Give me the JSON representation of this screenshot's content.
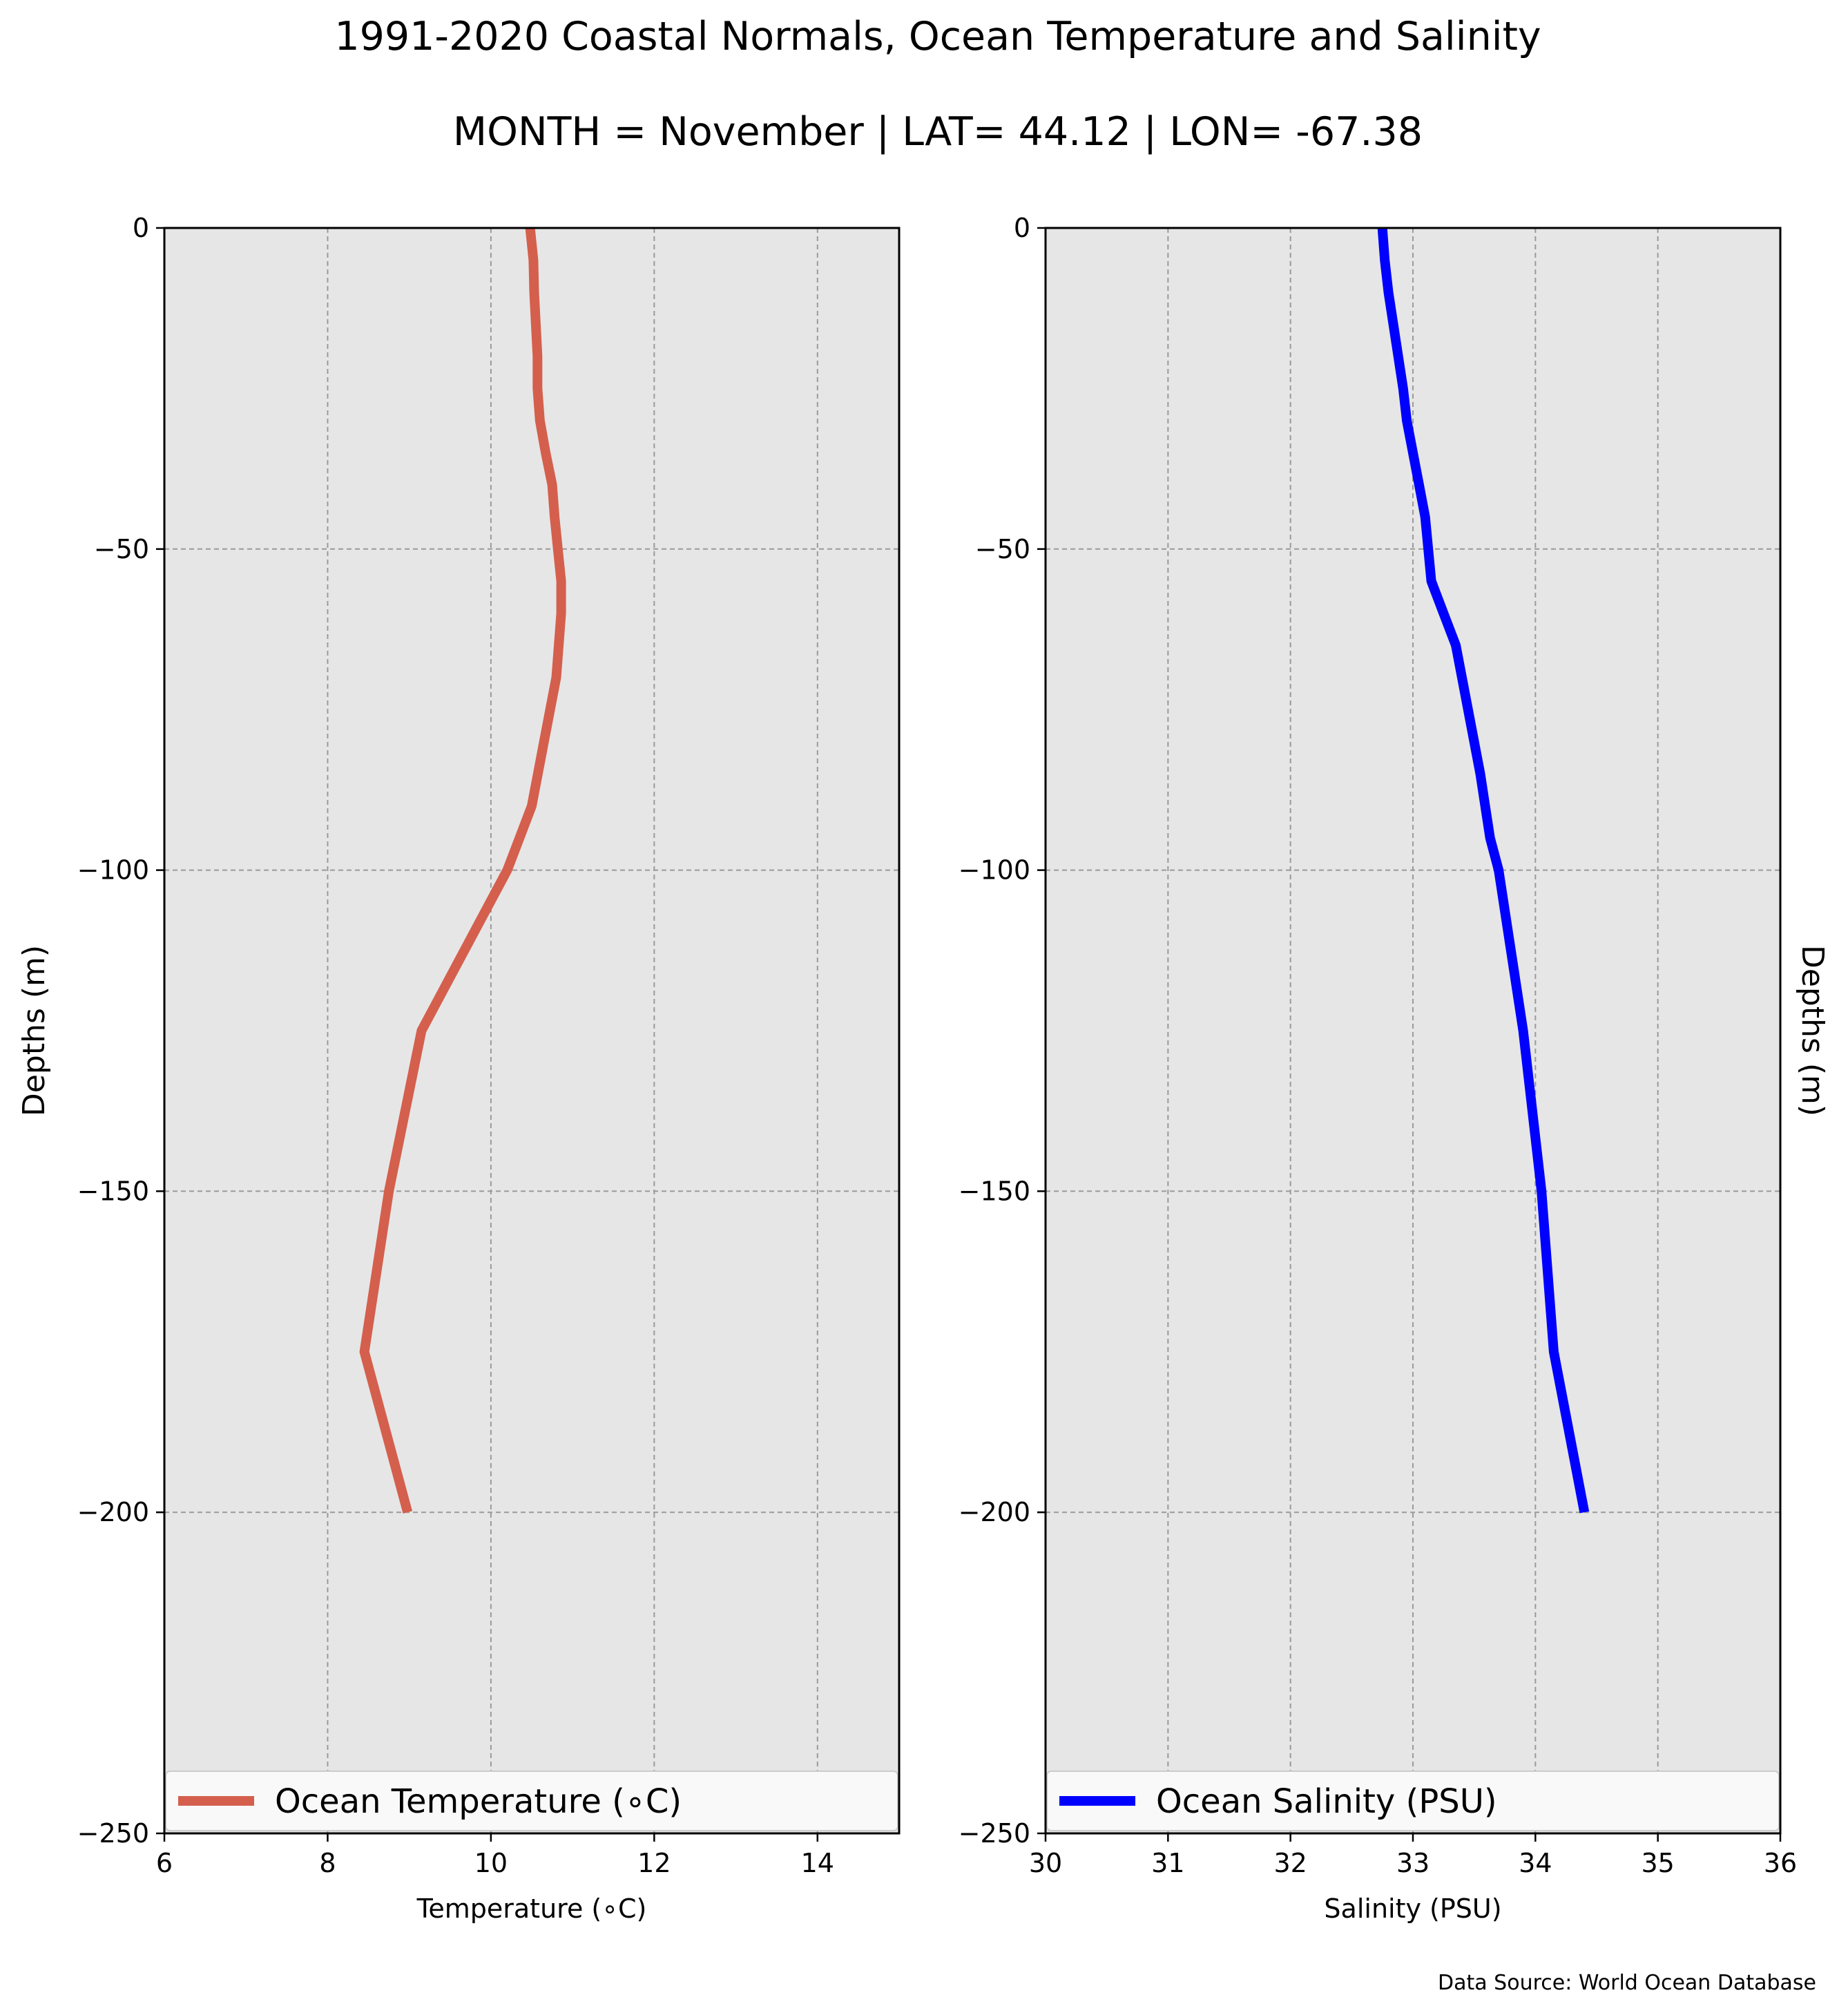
{
  "figure": {
    "title": "1991-2020 Coastal Normals, Ocean Temperature and Salinity",
    "subtitle": "MONTH = November | LAT= 44.12 | LON= -67.38",
    "source": "Data Source: World Ocean Database"
  },
  "chart_data": [
    {
      "type": "line",
      "xlabel": "Temperature (∘C)",
      "ylabel": "Depths (m)",
      "xlim": [
        6,
        15
      ],
      "ylim": [
        -250,
        0
      ],
      "xticks": [
        6,
        8,
        10,
        12,
        14
      ],
      "xtick_labels": [
        "6",
        "8",
        "10",
        "12",
        "14"
      ],
      "yticks": [
        0,
        -50,
        -100,
        -150,
        -200,
        -250
      ],
      "ytick_labels": [
        "0",
        "−50",
        "−100",
        "−150",
        "−200",
        "−250"
      ],
      "grid": true,
      "background": "#e6e6e6",
      "legend_placement": "lower",
      "series": [
        {
          "name": "Ocean Temperature (∘C)",
          "color": "#d45f4d",
          "x": [
            10.48,
            10.52,
            10.53,
            10.55,
            10.57,
            10.57,
            10.6,
            10.67,
            10.75,
            10.78,
            10.82,
            10.86,
            10.86,
            10.8,
            10.65,
            10.5,
            10.35,
            10.2,
            9.15,
            8.75,
            8.45,
            8.98
          ],
          "y": [
            0,
            -5,
            -10,
            -15,
            -20,
            -25,
            -30,
            -35,
            -40,
            -45,
            -50,
            -55,
            -60,
            -70,
            -80,
            -90,
            -95,
            -100,
            -125,
            -150,
            -175,
            -200
          ]
        }
      ]
    },
    {
      "type": "line",
      "xlabel": "Salinity (PSU)",
      "ylabel": "Depths (m)",
      "xlim": [
        30,
        36
      ],
      "ylim": [
        -250,
        0
      ],
      "xticks": [
        30,
        31,
        32,
        33,
        34,
        35,
        36
      ],
      "xtick_labels": [
        "30",
        "31",
        "32",
        "33",
        "34",
        "35",
        "36"
      ],
      "yticks": [
        0,
        -50,
        -100,
        -150,
        -200,
        -250
      ],
      "ytick_labels": [
        "0",
        "−50",
        "−100",
        "−150",
        "−200",
        "−250"
      ],
      "grid": true,
      "background": "#e6e6e6",
      "legend_placement": "lower",
      "series": [
        {
          "name": "Ocean Salinity (PSU)",
          "color": "#0000ff",
          "x": [
            32.75,
            32.77,
            32.8,
            32.84,
            32.88,
            32.92,
            32.95,
            33.0,
            33.05,
            33.1,
            33.15,
            33.25,
            33.35,
            33.45,
            33.55,
            33.63,
            33.7,
            33.9,
            34.05,
            34.15,
            34.4
          ],
          "y": [
            0,
            -5,
            -10,
            -15,
            -20,
            -25,
            -30,
            -35,
            -40,
            -45,
            -55,
            -60,
            -65,
            -75,
            -85,
            -95,
            -100,
            -125,
            -150,
            -175,
            -200
          ]
        }
      ]
    }
  ]
}
